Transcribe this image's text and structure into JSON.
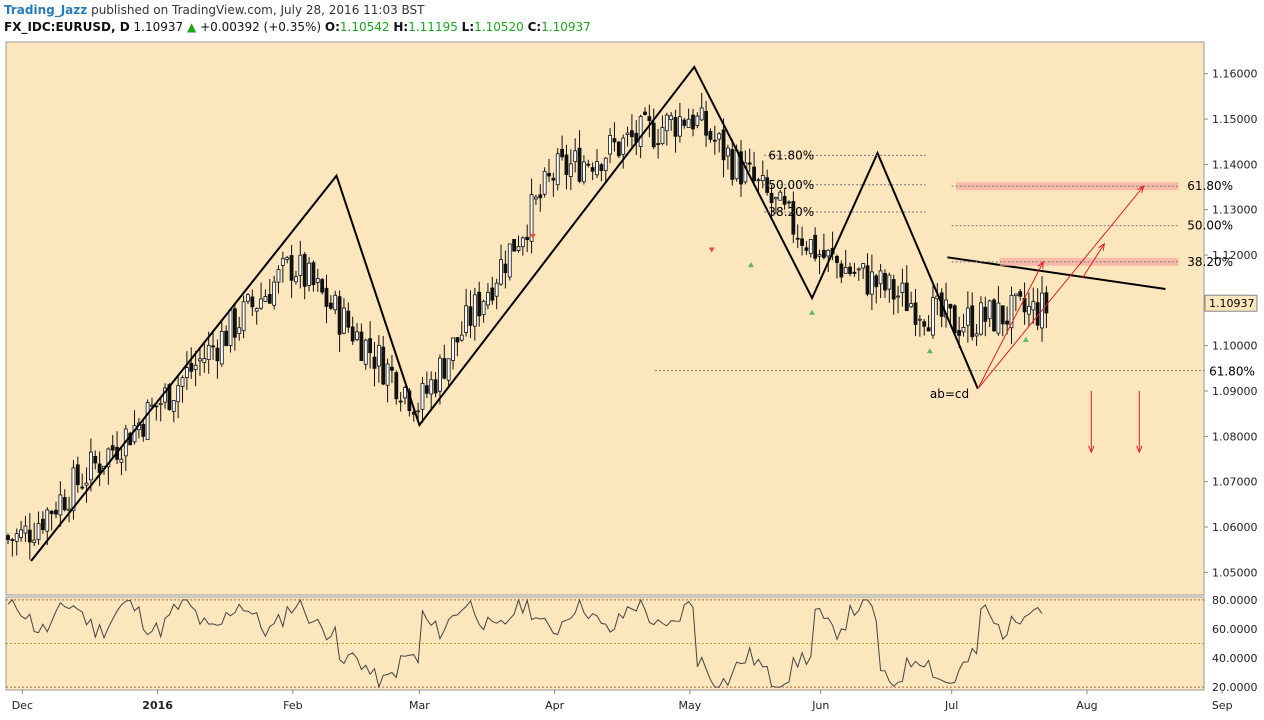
{
  "header": {
    "author": "Trading_Jazz",
    "published": "published on TradingView.com, July 28, 2016 11:03 BST",
    "symbol": "FX_IDC:EURUSD, D",
    "last": "1.10937",
    "change": "+0.00392 (+0.35%)",
    "o_label": "O:",
    "o_val": "1.10542",
    "h_label": "H:",
    "h_val": "1.11195",
    "l_label": "L:",
    "l_val": "1.10520",
    "c_label": "C:",
    "c_val": "1.10937"
  },
  "colors": {
    "background": "#fbe6bd",
    "candle_up": "#ffffff",
    "candle_down": "#111111",
    "up_marker": "#5cb85c",
    "down_marker": "#e0524a",
    "projection": "#e02020",
    "fib_zone": "#f5a8a0",
    "price_tag": "#fbe6bd"
  },
  "chart_data": [
    {
      "type": "candlestick",
      "title": "FX_IDC:EURUSD, D",
      "ylim": [
        1.045,
        1.167
      ],
      "y_ticks": [
        "1.16000",
        "1.15000",
        "1.14000",
        "1.13000",
        "1.12000",
        "1.11000",
        "1.10000",
        "1.09000",
        "1.08000",
        "1.07000",
        "1.06000",
        "1.05000"
      ],
      "x_ticks": [
        "Dec",
        "2016",
        "Feb",
        "Mar",
        "Apr",
        "May",
        "Jun",
        "Jul",
        "Aug",
        "Sep"
      ],
      "last_price_label": "1.10937",
      "close_path_by_month": [
        {
          "month": "Dec",
          "close": 1.058
        },
        {
          "month": "2016",
          "close": 1.087
        },
        {
          "month": "Feb",
          "close": 1.118
        },
        {
          "month": "Mar",
          "close": 1.087
        },
        {
          "month": "Apr",
          "close": 1.138
        },
        {
          "month": "May",
          "close": 1.151
        },
        {
          "month": "Jun",
          "close": 1.12
        },
        {
          "month": "Jul",
          "close": 1.105
        },
        {
          "month": "Aug",
          "close": 1.1094
        }
      ],
      "zigzag": [
        {
          "date": "Dec 3",
          "price": 1.0525
        },
        {
          "date": "Feb 11",
          "price": 1.1375
        },
        {
          "date": "Mar 1",
          "price": 1.0825
        },
        {
          "date": "May 3",
          "price": 1.1615
        },
        {
          "date": "May 30",
          "price": 1.1105
        },
        {
          "date": "Jun 14",
          "price": 1.1425
        },
        {
          "date": "Jul 7",
          "price": 1.0905
        }
      ],
      "fib_left": [
        {
          "label": "61.80%",
          "price": 1.142
        },
        {
          "label": "50.00%",
          "price": 1.1355
        },
        {
          "label": "38.20%",
          "price": 1.1295
        }
      ],
      "fib_right": [
        {
          "label": "61.80%",
          "price": 1.1352
        },
        {
          "label": "50.00%",
          "price": 1.1265
        },
        {
          "label": "38.20%",
          "price": 1.1185
        }
      ],
      "fib_bottom": {
        "label": "61.80%",
        "price": 1.0945
      },
      "annotation": "ab=cd"
    },
    {
      "type": "line",
      "indicator": "oscillator",
      "ylim": [
        18,
        82
      ],
      "y_ticks": [
        "80.0000",
        "60.0000",
        "40.0000",
        "20.0000"
      ],
      "level_lines": [
        80,
        50,
        20
      ]
    }
  ]
}
